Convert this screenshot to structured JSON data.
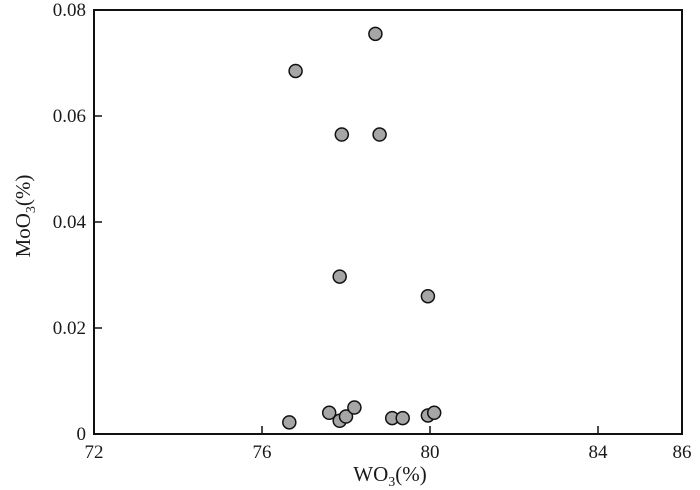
{
  "chart_data": {
    "type": "scatter",
    "title": "",
    "xlabel": {
      "base": "WO",
      "sub": "3",
      "rest": "(%)"
    },
    "ylabel": {
      "base": "MoO",
      "sub": "3",
      "rest": "(%)"
    },
    "xlim": [
      72,
      86
    ],
    "ylim": [
      0,
      0.08
    ],
    "xticks": [
      72,
      76,
      80,
      84,
      86
    ],
    "xtick_labels": [
      "72",
      "76",
      "80",
      "84",
      "86"
    ],
    "yticks": [
      0,
      0.02,
      0.04,
      0.06,
      0.08
    ],
    "ytick_labels": [
      "0",
      "0.02",
      "0.04",
      "0.06",
      "0.08"
    ],
    "grid": false,
    "marker_fill": "#a6a6a6",
    "marker_stroke": "#111111",
    "points": [
      {
        "x": 76.8,
        "y": 0.0685
      },
      {
        "x": 78.7,
        "y": 0.0755
      },
      {
        "x": 77.9,
        "y": 0.0565
      },
      {
        "x": 78.8,
        "y": 0.0565
      },
      {
        "x": 77.85,
        "y": 0.0297
      },
      {
        "x": 79.95,
        "y": 0.026
      },
      {
        "x": 76.65,
        "y": 0.0022
      },
      {
        "x": 77.6,
        "y": 0.004
      },
      {
        "x": 77.85,
        "y": 0.0025
      },
      {
        "x": 78.0,
        "y": 0.0033
      },
      {
        "x": 78.2,
        "y": 0.005
      },
      {
        "x": 79.1,
        "y": 0.003
      },
      {
        "x": 79.35,
        "y": 0.003
      },
      {
        "x": 79.95,
        "y": 0.0035
      },
      {
        "x": 80.1,
        "y": 0.004
      }
    ]
  }
}
